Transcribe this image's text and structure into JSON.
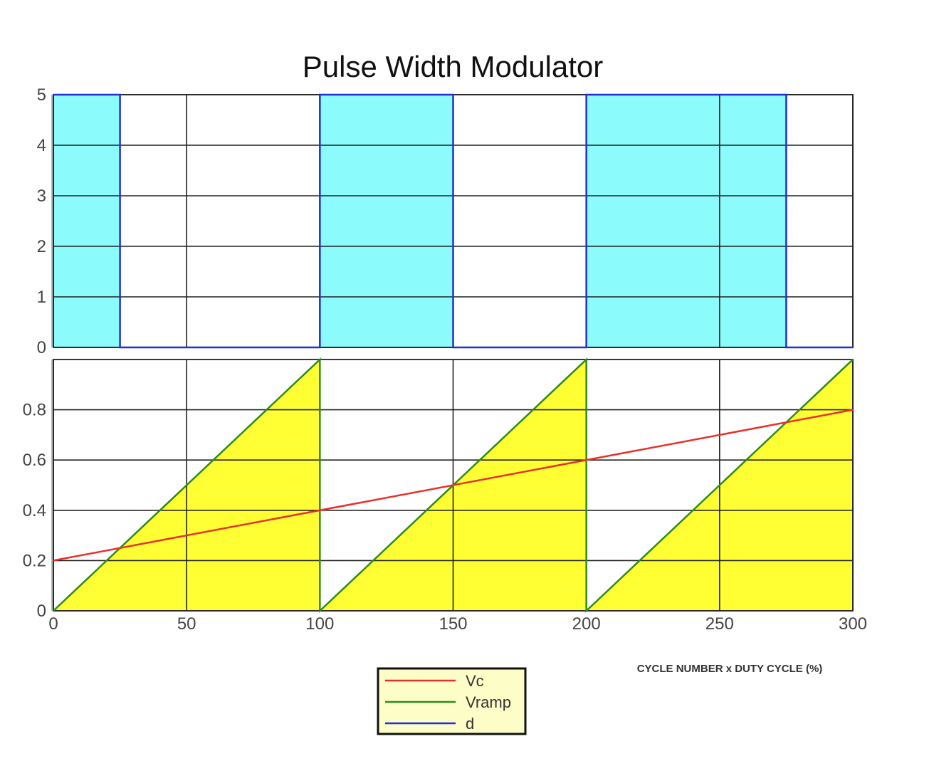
{
  "chart_data": [
    {
      "type": "area",
      "panel": "top",
      "title": "Pulse Width Modulator",
      "ylim": [
        0,
        5
      ],
      "xlim": [
        0,
        300
      ],
      "yticks": [
        "0",
        "1",
        "2",
        "3",
        "4",
        "5"
      ],
      "grid": true,
      "series": [
        {
          "name": "d",
          "color": "#1f2fd6",
          "fill": "#8cfbfb",
          "x": [
            0,
            25,
            25,
            100,
            100,
            150,
            150,
            200,
            200,
            275,
            275,
            300
          ],
          "y": [
            5,
            5,
            0,
            0,
            5,
            5,
            0,
            0,
            5,
            5,
            0,
            0
          ]
        }
      ]
    },
    {
      "type": "area",
      "panel": "bottom",
      "xlabel": "CYCLE NUMBER x DUTY CYCLE (%)",
      "ylim": [
        0,
        1
      ],
      "xlim": [
        0,
        300
      ],
      "yticks": [
        "0",
        "0.2",
        "0.4",
        "0.6",
        "0.8"
      ],
      "xticks": [
        "0",
        "50",
        "100",
        "150",
        "200",
        "250",
        "300"
      ],
      "grid": true,
      "series": [
        {
          "name": "Vramp",
          "color": "#2e8b1e",
          "fill": "#ffff33",
          "x": [
            0,
            100,
            100,
            200,
            200,
            300
          ],
          "y": [
            0,
            1,
            0,
            1,
            0,
            1
          ]
        },
        {
          "name": "Vc",
          "color": "#e8302a",
          "x": [
            0,
            300
          ],
          "y": [
            0.2,
            0.8
          ]
        }
      ]
    }
  ],
  "legend": {
    "placement": "bottom-center",
    "items": [
      {
        "label": "Vc",
        "color": "#e8302a"
      },
      {
        "label": "Vramp",
        "color": "#2e8b1e"
      },
      {
        "label": "d",
        "color": "#1f2fd6"
      }
    ]
  }
}
